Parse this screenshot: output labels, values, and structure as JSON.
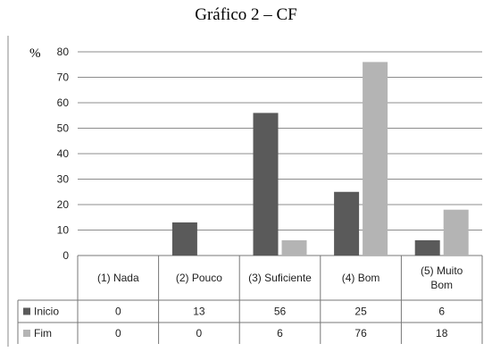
{
  "chart_data": {
    "type": "bar",
    "title": "Gráfico 2 – CF",
    "ylabel": "%",
    "ylim": [
      0,
      80
    ],
    "yticks": [
      0,
      10,
      20,
      30,
      40,
      50,
      60,
      70,
      80
    ],
    "grid": true,
    "categories": [
      [
        "(1) Nada"
      ],
      [
        "(2) Pouco"
      ],
      [
        "(3) Suficiente"
      ],
      [
        "(4) Bom"
      ],
      [
        "(5) Muito",
        "Bom"
      ]
    ],
    "series": [
      {
        "name": "Inicio",
        "values": [
          0,
          13,
          56,
          25,
          6
        ],
        "color": "#5a5a5a"
      },
      {
        "name": "Fim",
        "values": [
          0,
          0,
          6,
          76,
          18
        ],
        "color": "#b4b4b4"
      }
    ]
  }
}
